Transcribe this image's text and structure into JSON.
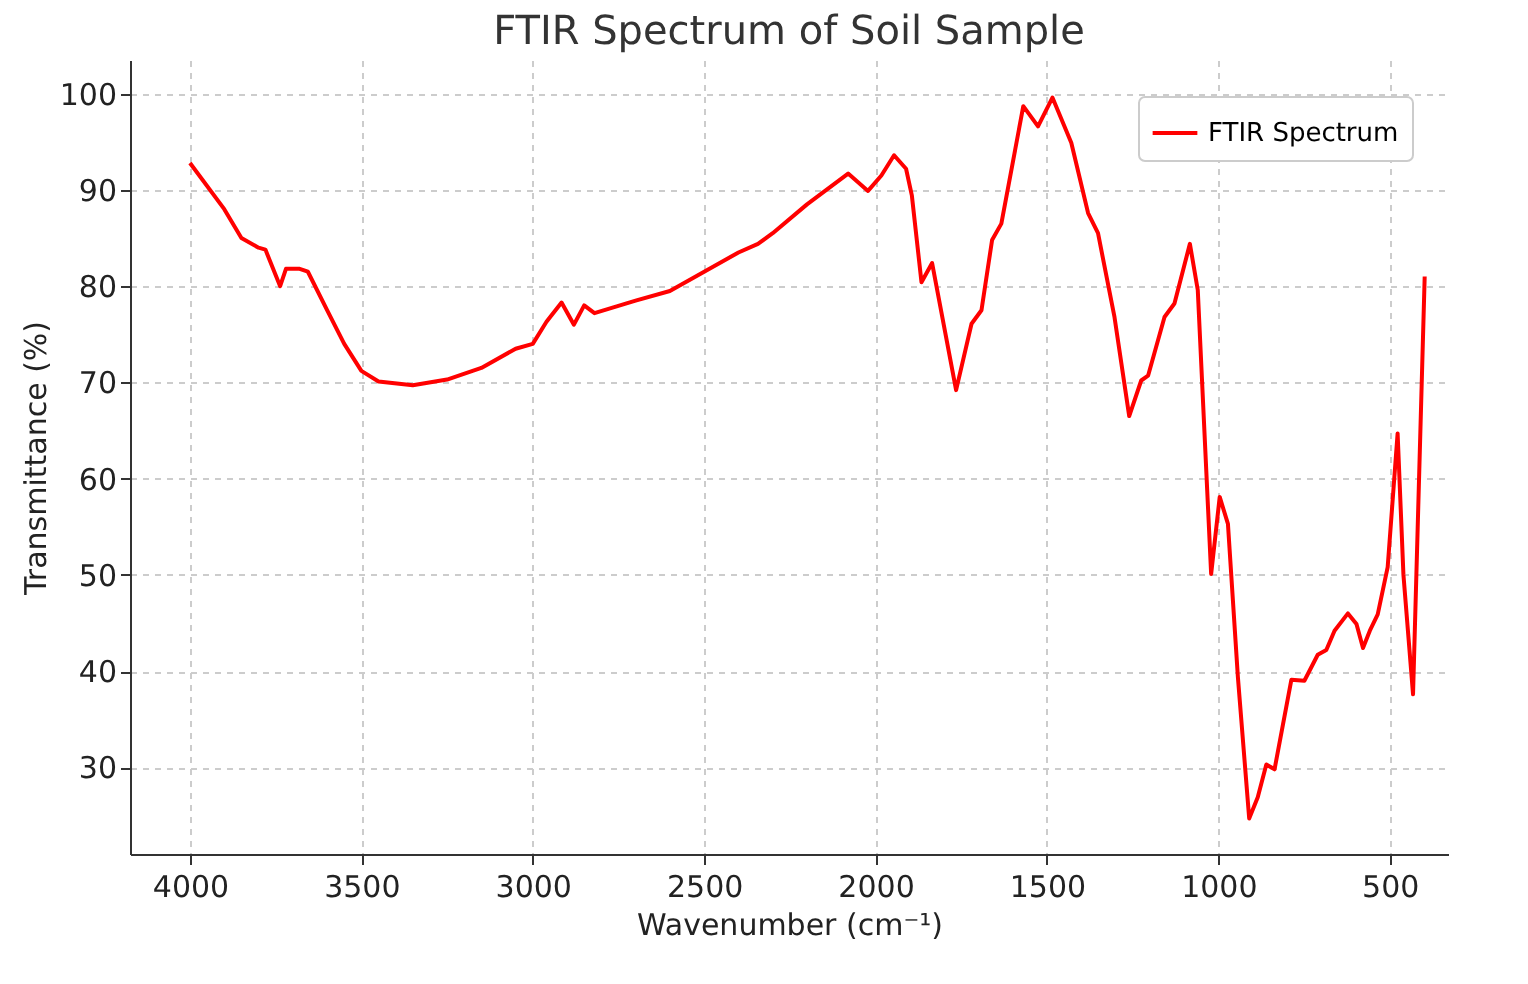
{
  "chart_data": {
    "type": "line",
    "title": "FTIR Spectrum of Soil Sample",
    "xlabel": "Wavenumber (cm⁻¹)",
    "ylabel": "Transmittance (%)",
    "x": [
      4000,
      3900,
      3850,
      3800,
      3780,
      3737,
      3720,
      3680,
      3656,
      3600,
      3550,
      3500,
      3450,
      3350,
      3250,
      3150,
      3050,
      3000,
      2960,
      2916,
      2880,
      2850,
      2820,
      2700,
      2600,
      2500,
      2400,
      2343,
      2300,
      2200,
      2080,
      2022,
      1983,
      1946,
      1911,
      1894,
      1866,
      1835,
      1765,
      1720,
      1691,
      1660,
      1633,
      1569,
      1526,
      1484,
      1429,
      1380,
      1351,
      1303,
      1260,
      1225,
      1205,
      1157,
      1128,
      1083,
      1060,
      1021,
      996,
      972,
      943,
      910,
      885,
      860,
      836,
      787,
      749,
      710,
      685,
      661,
      622,
      597,
      578,
      558,
      535,
      506,
      477,
      460,
      432,
      398
    ],
    "series": [
      {
        "name": "FTIR Spectrum",
        "color": "#ff0000",
        "values": [
          92.8,
          88,
          85,
          84,
          83.8,
          80,
          81.8,
          81.8,
          81.5,
          77.5,
          74,
          71.2,
          70.1,
          69.7,
          70.3,
          71.5,
          73.5,
          74,
          76.3,
          78.3,
          76,
          78,
          77.2,
          78.5,
          79.5,
          81.5,
          83.5,
          84.4,
          85.5,
          88.5,
          91.7,
          89.9,
          91.5,
          93.6,
          92.2,
          89.4,
          80.4,
          82.4,
          69.2,
          76.1,
          77.5,
          84.8,
          86.5,
          98.7,
          96.6,
          99.6,
          94.9,
          87.6,
          85.5,
          76.8,
          66.5,
          70.2,
          70.7,
          76.8,
          78.2,
          84.4,
          79.6,
          50.1,
          58.1,
          55.3,
          39.4,
          24.7,
          26.9,
          30.3,
          29.8,
          39.1,
          39,
          41.7,
          42.2,
          44.2,
          46,
          44.9,
          42.4,
          44.2,
          45.9,
          50.8,
          64.7,
          50,
          37.6,
          81
        ]
      }
    ],
    "xlim": [
      4175,
      330
    ],
    "ylim": [
      21,
      103.5
    ],
    "xticks": [
      4000,
      3500,
      3000,
      2500,
      2000,
      1500,
      1000,
      500
    ],
    "yticks": [
      30,
      40,
      50,
      60,
      70,
      80,
      90,
      100
    ],
    "grid": true,
    "legend": "top right"
  }
}
